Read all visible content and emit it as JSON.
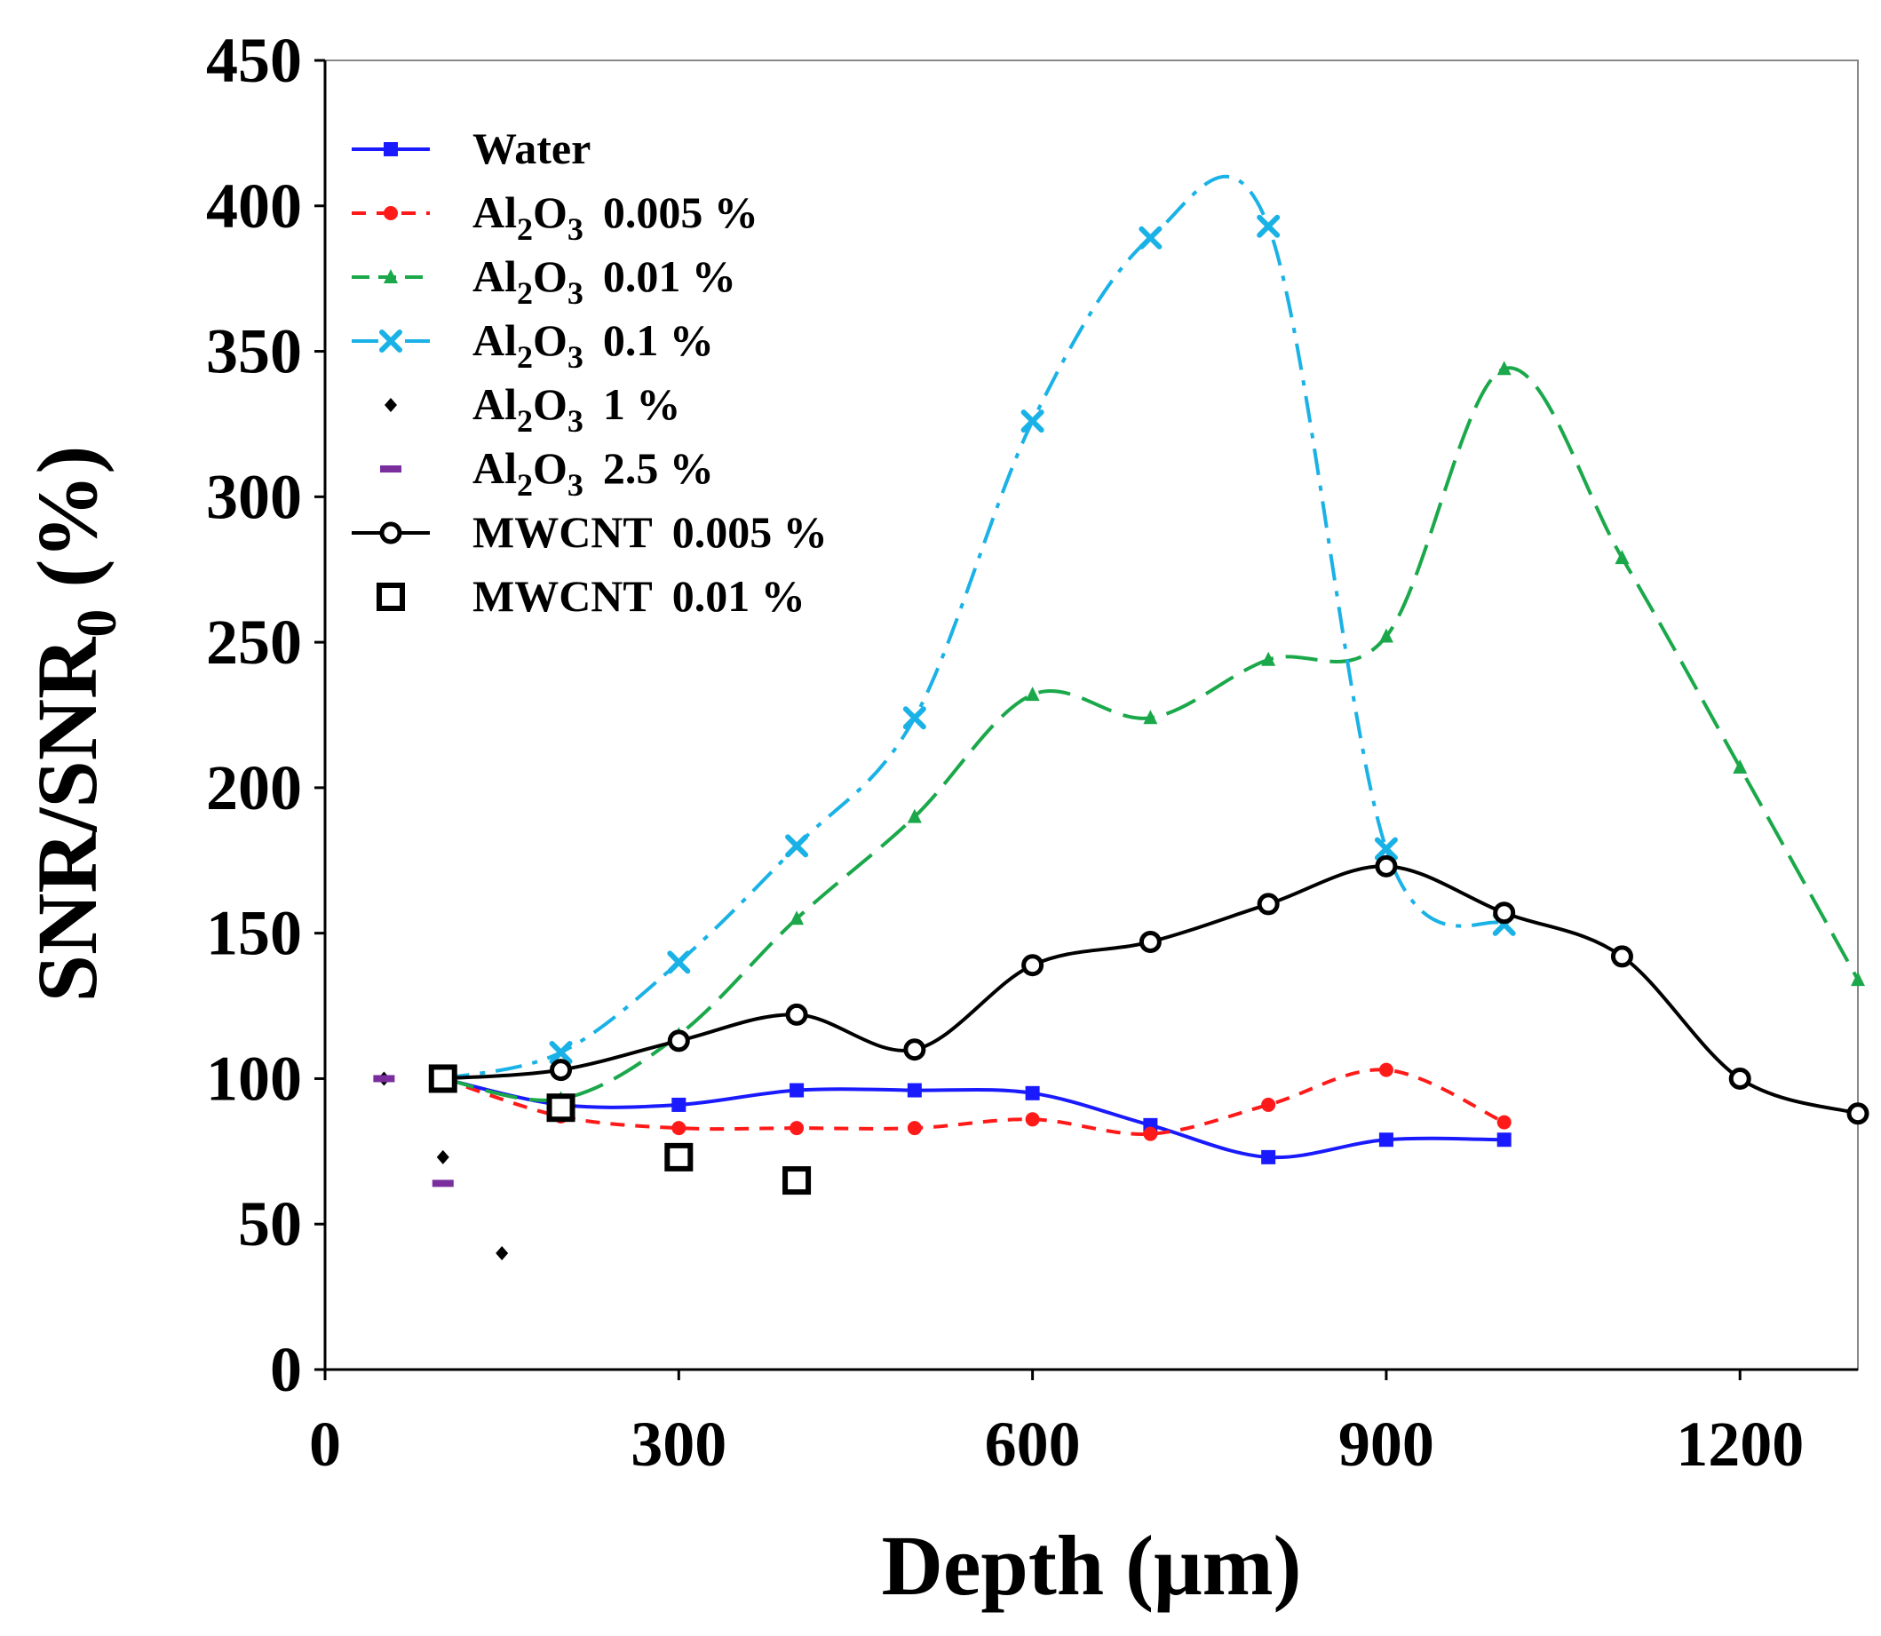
{
  "chart_data": {
    "type": "line",
    "title": "",
    "xlabel": "Depth (μm)",
    "ylabel": "SNR/SNR",
    "ylabel_subscript": "0",
    "ylabel_suffix": " (%)",
    "xlim": [
      0,
      1300
    ],
    "ylim": [
      0,
      450
    ],
    "xticks": [
      0,
      300,
      600,
      900,
      1200
    ],
    "yticks": [
      0,
      50,
      100,
      150,
      200,
      250,
      300,
      350,
      400,
      450
    ],
    "legend_position": "top-left",
    "series": [
      {
        "name": "Water",
        "label": "Water",
        "sub": "",
        "value": "",
        "color": "#1a1aff",
        "line": "solid",
        "marker": "square-filled",
        "x": [
          100,
          200,
          300,
          400,
          500,
          600,
          700,
          800,
          900,
          1000
        ],
        "y": [
          100,
          91,
          91,
          96,
          96,
          95,
          84,
          73,
          79,
          79
        ]
      },
      {
        "name": "Al2O3 0.005 %",
        "label": "Al",
        "sub": "2",
        "label2": "O",
        "sub2": "3",
        "value": "0.005 %",
        "color": "#ff1a1a",
        "line": "dashed",
        "marker": "circle-filled",
        "x": [
          100,
          200,
          300,
          400,
          500,
          600,
          700,
          800,
          900,
          1000
        ],
        "y": [
          100,
          87,
          83,
          83,
          83,
          86,
          81,
          91,
          103,
          85
        ]
      },
      {
        "name": "Al2O3 0.01 %",
        "label": "Al",
        "sub": "2",
        "label2": "O",
        "sub2": "3",
        "value": "0.01 %",
        "color": "#1aa84a",
        "line": "longdash",
        "marker": "triangle-filled",
        "x": [
          100,
          200,
          300,
          400,
          500,
          600,
          700,
          800,
          900,
          1000,
          1100,
          1200,
          1300
        ],
        "y": [
          100,
          93,
          115,
          155,
          190,
          232,
          224,
          244,
          252,
          344,
          279,
          207,
          134
        ]
      },
      {
        "name": "Al2O3 0.1 %",
        "label": "Al",
        "sub": "2",
        "label2": "O",
        "sub2": "3",
        "value": "0.1 %",
        "color": "#1ab2e6",
        "line": "dashdot",
        "marker": "x",
        "x": [
          100,
          200,
          300,
          400,
          500,
          600,
          700,
          800,
          900,
          1000
        ],
        "y": [
          100,
          109,
          140,
          180,
          224,
          326,
          389,
          393,
          179,
          153
        ]
      },
      {
        "name": "Al2O3 1 %",
        "label": "Al",
        "sub": "2",
        "label2": "O",
        "sub2": "3",
        "value": "1 %",
        "color": "#000000",
        "line": "none",
        "marker": "diamond-small",
        "x": [
          50,
          100,
          150
        ],
        "y": [
          100,
          73,
          40
        ]
      },
      {
        "name": "Al2O3 2.5 %",
        "label": "Al",
        "sub": "2",
        "label2": "O",
        "sub2": "3",
        "value": "2.5 %",
        "color": "#7a2e9e",
        "line": "none",
        "marker": "dash",
        "x": [
          50,
          100
        ],
        "y": [
          100,
          64
        ]
      },
      {
        "name": "MWCNT 0.005 %",
        "label": "MWCNT",
        "sub": "",
        "value": "0.005 %",
        "color": "#000000",
        "line": "solid",
        "marker": "circle-open",
        "x": [
          100,
          200,
          300,
          400,
          500,
          600,
          700,
          800,
          900,
          1000,
          1100,
          1200,
          1300
        ],
        "y": [
          100,
          103,
          113,
          122,
          110,
          139,
          147,
          160,
          173,
          157,
          142,
          100,
          88
        ]
      },
      {
        "name": "MWCNT 0.01 %",
        "label": "MWCNT",
        "sub": "",
        "value": "0.01 %",
        "color": "#000000",
        "line": "none",
        "marker": "square-open",
        "x": [
          100,
          200,
          300,
          400
        ],
        "y": [
          100,
          90,
          73,
          65
        ]
      }
    ]
  }
}
